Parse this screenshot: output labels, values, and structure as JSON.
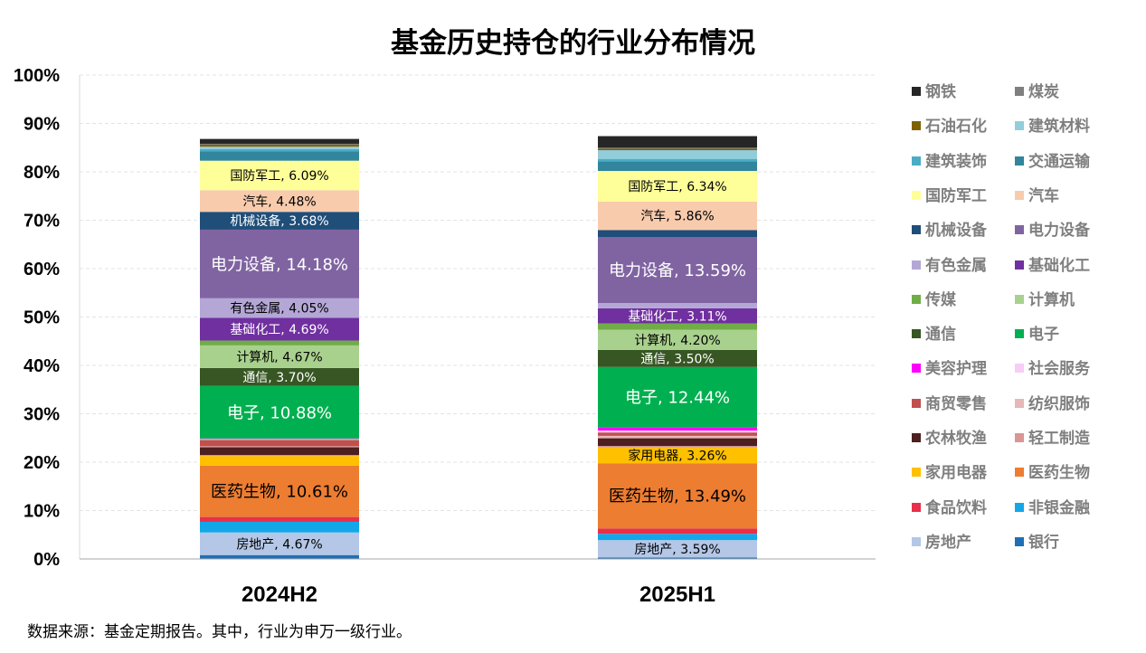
{
  "title": "基金历史持仓的行业分布情况",
  "footnote": "数据来源：基金定期报告。其中，行业为申万一级行业。",
  "chart_data": {
    "type": "bar",
    "stacked": true,
    "title": "基金历史持仓的行业分布情况",
    "ylim": [
      0,
      100
    ],
    "yticks": [
      "0%",
      "10%",
      "20%",
      "30%",
      "40%",
      "50%",
      "60%",
      "70%",
      "80%",
      "90%",
      "100%"
    ],
    "categories": [
      "2024H2",
      "2025H1"
    ],
    "legend_position": "right",
    "series": [
      {
        "name": "银行",
        "color": "#1f6fb5",
        "values": [
          0.8,
          0.3
        ]
      },
      {
        "name": "房地产",
        "color": "#b4c7e7",
        "values": [
          4.67,
          3.59
        ],
        "labels": [
          "房地产, 4.67%",
          "房地产, 3.59%"
        ],
        "label_color": "#000000",
        "label_size": 14
      },
      {
        "name": "非银金融",
        "color": "#13a7e8",
        "values": [
          2.2,
          1.3
        ]
      },
      {
        "name": "食品饮料",
        "color": "#e8304a",
        "values": [
          1.0,
          1.1
        ]
      },
      {
        "name": "医药生物",
        "color": "#ed7d31",
        "values": [
          10.61,
          13.49
        ],
        "labels": [
          "医药生物, 10.61%",
          "医药生物, 13.49%"
        ],
        "label_color": "#000000",
        "label_size": 18
      },
      {
        "name": "家用电器",
        "color": "#ffc000",
        "values": [
          2.0,
          3.26
        ],
        "labels": [
          "",
          "家用电器, 3.26%"
        ],
        "label_color": "#000000",
        "label_size": 14
      },
      {
        "name": "轻工制造",
        "color": "#d99694",
        "values": [
          0.2,
          0.3
        ]
      },
      {
        "name": "农林牧渔",
        "color": "#4d1f1f",
        "values": [
          1.6,
          1.6
        ]
      },
      {
        "name": "纺织服饰",
        "color": "#e6b8b7",
        "values": [
          0.2,
          0.5
        ]
      },
      {
        "name": "商贸零售",
        "color": "#c0504d",
        "values": [
          1.3,
          0.7
        ]
      },
      {
        "name": "社会服务",
        "color": "#f7cdf7",
        "values": [
          0.2,
          0.4
        ]
      },
      {
        "name": "美容护理",
        "color": "#ff00ff",
        "values": [
          0.1,
          0.7
        ]
      },
      {
        "name": "电子",
        "color": "#00b050",
        "values": [
          10.88,
          12.44
        ],
        "labels": [
          "电子, 10.88%",
          "电子, 12.44%"
        ],
        "label_color": "#ffffff",
        "label_size": 18
      },
      {
        "name": "通信",
        "color": "#375623",
        "values": [
          3.7,
          3.5
        ],
        "labels": [
          "通信, 3.70%",
          "通信, 3.50%"
        ],
        "label_color": "#ffffff",
        "label_size": 14
      },
      {
        "name": "计算机",
        "color": "#a9d18e",
        "values": [
          4.67,
          4.2
        ],
        "labels": [
          "计算机, 4.67%",
          "计算机, 4.20%"
        ],
        "label_color": "#000000",
        "label_size": 14
      },
      {
        "name": "传媒",
        "color": "#70ad47",
        "values": [
          1.0,
          1.3
        ]
      },
      {
        "name": "基础化工",
        "color": "#7030a0",
        "values": [
          4.69,
          3.11
        ],
        "labels": [
          "基础化工, 4.69%",
          "基础化工, 3.11%"
        ],
        "label_color": "#ffffff",
        "label_size": 14
      },
      {
        "name": "有色金属",
        "color": "#b4a7d6",
        "values": [
          4.05,
          1.1
        ],
        "labels": [
          "有色金属, 4.05%",
          ""
        ],
        "label_color": "#000000",
        "label_size": 14
      },
      {
        "name": "电力设备",
        "color": "#8064a2",
        "values": [
          14.18,
          13.59
        ],
        "labels": [
          "电力设备, 14.18%",
          "电力设备, 13.59%"
        ],
        "label_color": "#ffffff",
        "label_size": 18
      },
      {
        "name": "机械设备",
        "color": "#1f4e79",
        "values": [
          3.68,
          1.5
        ],
        "labels": [
          "机械设备, 3.68%",
          ""
        ],
        "label_color": "#ffffff",
        "label_size": 14
      },
      {
        "name": "汽车",
        "color": "#f8cbad",
        "values": [
          4.48,
          5.86
        ],
        "labels": [
          "汽车, 4.48%",
          "汽车, 5.86%"
        ],
        "label_color": "#000000",
        "label_size": 14
      },
      {
        "name": "国防军工",
        "color": "#ffff99",
        "values": [
          6.09,
          6.34
        ],
        "labels": [
          "国防军工, 6.09%",
          "国防军工, 6.34%"
        ],
        "label_color": "#000000",
        "label_size": 14
      },
      {
        "name": "交通运输",
        "color": "#31859c",
        "values": [
          1.9,
          2.0
        ]
      },
      {
        "name": "建筑装饰",
        "color": "#4bacc6",
        "values": [
          0.5,
          0.5
        ]
      },
      {
        "name": "建筑材料",
        "color": "#92cddc",
        "values": [
          0.5,
          1.8
        ]
      },
      {
        "name": "石油石化",
        "color": "#7f6000",
        "values": [
          0.4,
          0.3
        ]
      },
      {
        "name": "煤炭",
        "color": "#7f7f7f",
        "values": [
          0.2,
          0.2
        ]
      },
      {
        "name": "钢铁",
        "color": "#262626",
        "values": [
          1.0,
          2.4
        ]
      }
    ],
    "legend_order": [
      "钢铁",
      "煤炭",
      "石油石化",
      "建筑材料",
      "建筑装饰",
      "交通运输",
      "国防军工",
      "汽车",
      "机械设备",
      "电力设备",
      "有色金属",
      "基础化工",
      "传媒",
      "计算机",
      "通信",
      "电子",
      "美容护理",
      "社会服务",
      "商贸零售",
      "纺织服饰",
      "农林牧渔",
      "轻工制造",
      "家用电器",
      "医药生物",
      "食品饮料",
      "非银金融",
      "房地产",
      "银行"
    ]
  }
}
